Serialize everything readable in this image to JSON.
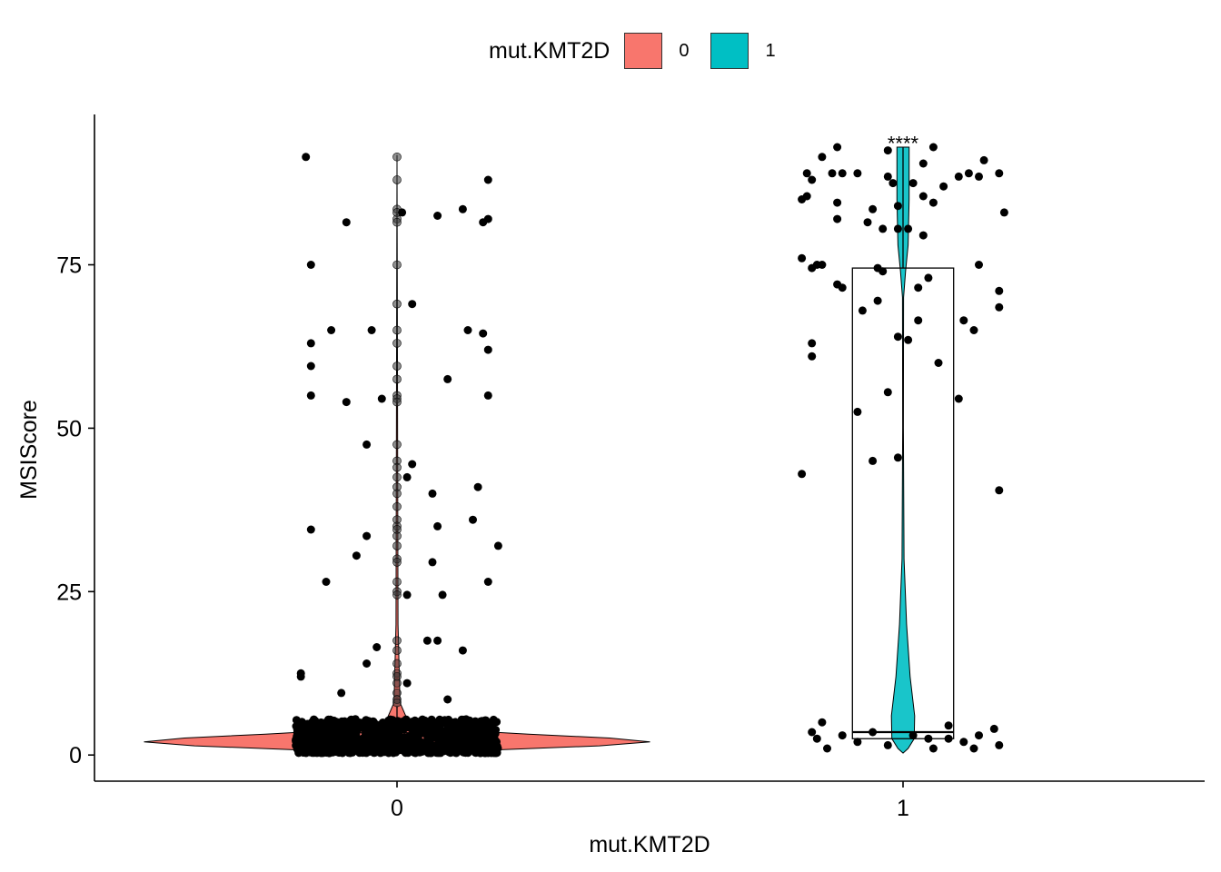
{
  "legend": {
    "title": "mut.KMT2D",
    "items": [
      {
        "label": "0",
        "color": "#F8766D"
      },
      {
        "label": "1",
        "color": "#00BFC4"
      }
    ]
  },
  "chart_data": {
    "type": "violin",
    "xlabel": "mut.KMT2D",
    "ylabel": "MSIScore",
    "categories": [
      "0",
      "1"
    ],
    "ylim": [
      -4,
      98
    ],
    "yticks": [
      0,
      25,
      50,
      75
    ],
    "grid": false,
    "legend_position": "top",
    "significance": {
      "category": "1",
      "label": "****",
      "y": 92.5
    },
    "series": [
      {
        "category": "0",
        "fill": "#F8766D",
        "violin_range": [
          0.2,
          91.8
        ],
        "box": {
          "q1": 0.9,
          "median": 1.9,
          "q3": 3.4,
          "upper_whisker": 7.5
        },
        "outliers": [
          91.5,
          88.0,
          83.5,
          83.0,
          82.0,
          81.5,
          75.0,
          69.0,
          65.0,
          63.0,
          59.5,
          57.5,
          55.0,
          54.5,
          54.0,
          47.5,
          45.0,
          44.0,
          42.5,
          41.0,
          40.0,
          38.0,
          36.0,
          35.0,
          34.5,
          33.5,
          32.0,
          30.0,
          29.5,
          26.5,
          25.0,
          24.5,
          17.5,
          16.0,
          14.0,
          12.5,
          12.0,
          11.0,
          9.5,
          8.5,
          8.0
        ],
        "points": [
          {
            "x": -0.18,
            "y": 91.5
          },
          {
            "x": 0.18,
            "y": 88.0
          },
          {
            "x": -0.1,
            "y": 81.5
          },
          {
            "x": 0.01,
            "y": 83.0
          },
          {
            "x": 0.08,
            "y": 82.5
          },
          {
            "x": 0.13,
            "y": 83.5
          },
          {
            "x": 0.17,
            "y": 81.5
          },
          {
            "x": 0.18,
            "y": 82.0
          },
          {
            "x": -0.17,
            "y": 75.0
          },
          {
            "x": 0.03,
            "y": 69.0
          },
          {
            "x": -0.13,
            "y": 65.0
          },
          {
            "x": -0.05,
            "y": 65.0
          },
          {
            "x": 0.14,
            "y": 65.0
          },
          {
            "x": 0.17,
            "y": 64.5
          },
          {
            "x": -0.17,
            "y": 63.0
          },
          {
            "x": 0.18,
            "y": 62.0
          },
          {
            "x": -0.17,
            "y": 59.5
          },
          {
            "x": 0.1,
            "y": 57.5
          },
          {
            "x": -0.17,
            "y": 55.0
          },
          {
            "x": 0.18,
            "y": 55.0
          },
          {
            "x": -0.1,
            "y": 54.0
          },
          {
            "x": -0.03,
            "y": 54.5
          },
          {
            "x": -0.06,
            "y": 47.5
          },
          {
            "x": 0.03,
            "y": 44.5
          },
          {
            "x": 0.02,
            "y": 42.5
          },
          {
            "x": 0.16,
            "y": 41.0
          },
          {
            "x": 0.07,
            "y": 40.0
          },
          {
            "x": 0.15,
            "y": 36.0
          },
          {
            "x": 0.08,
            "y": 35.0
          },
          {
            "x": -0.17,
            "y": 34.5
          },
          {
            "x": -0.06,
            "y": 33.5
          },
          {
            "x": 0.2,
            "y": 32.0
          },
          {
            "x": -0.08,
            "y": 30.5
          },
          {
            "x": 0.07,
            "y": 29.5
          },
          {
            "x": -0.14,
            "y": 26.5
          },
          {
            "x": 0.18,
            "y": 26.5
          },
          {
            "x": 0.09,
            "y": 24.5
          },
          {
            "x": 0.02,
            "y": 24.5
          },
          {
            "x": 0.06,
            "y": 17.5
          },
          {
            "x": 0.08,
            "y": 17.5
          },
          {
            "x": -0.04,
            "y": 16.5
          },
          {
            "x": 0.13,
            "y": 16.0
          },
          {
            "x": -0.06,
            "y": 14.0
          },
          {
            "x": -0.19,
            "y": 12.0
          },
          {
            "x": -0.19,
            "y": 12.5
          },
          {
            "x": -0.11,
            "y": 9.5
          },
          {
            "x": 0.02,
            "y": 11.0
          },
          {
            "x": 0.1,
            "y": 8.5
          }
        ]
      },
      {
        "category": "1",
        "fill": "#00BFC4",
        "violin_range": [
          0.3,
          93.0
        ],
        "box": {
          "q1": 2.5,
          "median": 3.5,
          "q3": 74.5,
          "upper_whisker": 93.0
        },
        "outliers": [],
        "points": [
          {
            "x": -0.13,
            "y": 93.0
          },
          {
            "x": -0.03,
            "y": 92.5
          },
          {
            "x": 0.06,
            "y": 93.0
          },
          {
            "x": -0.16,
            "y": 91.5
          },
          {
            "x": 0.16,
            "y": 91.0
          },
          {
            "x": 0.04,
            "y": 90.5
          },
          {
            "x": -0.19,
            "y": 89.0
          },
          {
            "x": -0.14,
            "y": 89.0
          },
          {
            "x": -0.12,
            "y": 89.0
          },
          {
            "x": -0.09,
            "y": 89.0
          },
          {
            "x": 0.11,
            "y": 88.5
          },
          {
            "x": 0.13,
            "y": 89.0
          },
          {
            "x": 0.19,
            "y": 89.0
          },
          {
            "x": -0.03,
            "y": 88.5
          },
          {
            "x": 0.15,
            "y": 88.5
          },
          {
            "x": -0.18,
            "y": 88.0
          },
          {
            "x": -0.02,
            "y": 87.5
          },
          {
            "x": 0.02,
            "y": 87.5
          },
          {
            "x": 0.08,
            "y": 87.0
          },
          {
            "x": -0.2,
            "y": 85.0
          },
          {
            "x": 0.04,
            "y": 85.5
          },
          {
            "x": 0.06,
            "y": 84.5
          },
          {
            "x": -0.13,
            "y": 84.5
          },
          {
            "x": -0.19,
            "y": 85.5
          },
          {
            "x": 0.2,
            "y": 83.0
          },
          {
            "x": -0.06,
            "y": 83.5
          },
          {
            "x": -0.01,
            "y": 84.0
          },
          {
            "x": -0.13,
            "y": 82.0
          },
          {
            "x": -0.07,
            "y": 81.5
          },
          {
            "x": -0.04,
            "y": 80.5
          },
          {
            "x": -0.01,
            "y": 80.5
          },
          {
            "x": 0.01,
            "y": 80.5
          },
          {
            "x": 0.04,
            "y": 79.5
          },
          {
            "x": -0.2,
            "y": 76.0
          },
          {
            "x": -0.18,
            "y": 74.5
          },
          {
            "x": -0.17,
            "y": 75.0
          },
          {
            "x": -0.16,
            "y": 75.0
          },
          {
            "x": 0.15,
            "y": 75.0
          },
          {
            "x": -0.05,
            "y": 74.5
          },
          {
            "x": -0.04,
            "y": 74.0
          },
          {
            "x": 0.05,
            "y": 73.0
          },
          {
            "x": -0.13,
            "y": 72.0
          },
          {
            "x": -0.12,
            "y": 71.5
          },
          {
            "x": 0.03,
            "y": 71.5
          },
          {
            "x": 0.19,
            "y": 71.0
          },
          {
            "x": -0.05,
            "y": 69.5
          },
          {
            "x": -0.08,
            "y": 68.0
          },
          {
            "x": 0.19,
            "y": 68.5
          },
          {
            "x": 0.03,
            "y": 66.5
          },
          {
            "x": 0.12,
            "y": 66.5
          },
          {
            "x": 0.14,
            "y": 65.0
          },
          {
            "x": -0.01,
            "y": 64.0
          },
          {
            "x": 0.01,
            "y": 63.5
          },
          {
            "x": -0.18,
            "y": 63.0
          },
          {
            "x": -0.18,
            "y": 61.0
          },
          {
            "x": 0.07,
            "y": 60.0
          },
          {
            "x": 0.11,
            "y": 54.5
          },
          {
            "x": -0.03,
            "y": 55.5
          },
          {
            "x": -0.09,
            "y": 52.5
          },
          {
            "x": -0.01,
            "y": 45.5
          },
          {
            "x": -0.06,
            "y": 45.0
          },
          {
            "x": -0.2,
            "y": 43.0
          },
          {
            "x": 0.19,
            "y": 40.5
          },
          {
            "x": -0.16,
            "y": 5.0
          },
          {
            "x": 0.09,
            "y": 4.5
          },
          {
            "x": 0.18,
            "y": 4.0
          },
          {
            "x": -0.18,
            "y": 3.5
          },
          {
            "x": -0.12,
            "y": 3.0
          },
          {
            "x": -0.06,
            "y": 3.5
          },
          {
            "x": 0.02,
            "y": 3.0
          },
          {
            "x": 0.09,
            "y": 2.5
          },
          {
            "x": 0.15,
            "y": 3.0
          },
          {
            "x": -0.17,
            "y": 2.5
          },
          {
            "x": -0.09,
            "y": 2.0
          },
          {
            "x": 0.05,
            "y": 2.5
          },
          {
            "x": 0.12,
            "y": 2.0
          },
          {
            "x": 0.19,
            "y": 1.5
          },
          {
            "x": -0.15,
            "y": 1.0
          },
          {
            "x": -0.03,
            "y": 1.5
          },
          {
            "x": 0.06,
            "y": 1.0
          },
          {
            "x": 0.14,
            "y": 1.0
          }
        ]
      }
    ]
  }
}
